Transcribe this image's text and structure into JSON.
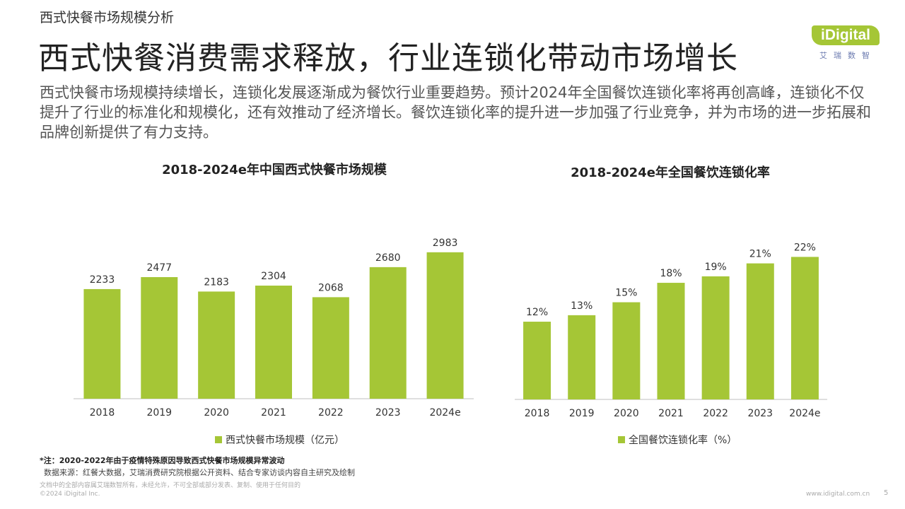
{
  "header": {
    "section_label": "西式快餐市场规模分析",
    "headline": "西式快餐消费需求释放，行业连锁化带动市场增长",
    "intro": "西式快餐市场规模持续增长，连锁化发展逐渐成为餐饮行业重要趋势。预计2024年全国餐饮连锁化率将再创高峰，连锁化不仅提升了行业的标准化和规模化，还有效推动了经济增长。餐饮连锁化率的提升进一步加强了行业竞争，并为市场的进一步拓展和品牌创新提供了有力支持。"
  },
  "logo": {
    "badge_text": "iDigital",
    "sub_text": "艾瑞数智"
  },
  "colors": {
    "bar": "#a5c636",
    "axis": "#bfbfbf",
    "logo_sub": "#6c7bb0"
  },
  "chart_data": [
    {
      "type": "bar",
      "title": "2018-2024e年中国西式快餐市场规模",
      "categories": [
        "2018",
        "2019",
        "2020",
        "2021",
        "2022",
        "2023",
        "2024e"
      ],
      "series": [
        {
          "name": "西式快餐市场规模（亿元）",
          "values": [
            2233,
            2477,
            2183,
            2304,
            2068,
            2680,
            2983
          ]
        }
      ],
      "data_labels": [
        "2233",
        "2477",
        "2183",
        "2304",
        "2068",
        "2680",
        "2983"
      ],
      "ylim": [
        0,
        3600
      ],
      "grid": false,
      "legend_position": "bottom"
    },
    {
      "type": "bar",
      "title": "2018-2024e年全国餐饮连锁化率",
      "categories": [
        "2018",
        "2019",
        "2020",
        "2021",
        "2022",
        "2023",
        "2024e"
      ],
      "series": [
        {
          "name": "全国餐饮连锁化率（%）",
          "values": [
            12,
            13,
            15,
            18,
            19,
            21,
            22
          ]
        }
      ],
      "data_labels": [
        "12%",
        "13%",
        "15%",
        "18%",
        "19%",
        "21%",
        "22%"
      ],
      "ylim": [
        0,
        27.5
      ],
      "grid": false,
      "legend_position": "bottom"
    }
  ],
  "footer": {
    "note": "*注：2020-2022年由于疫情特殊原因导致西式快餐市场规模异常波动",
    "source": "数据来源：红餐大数据，艾瑞消费研究院根据公开资料、结合专家访谈内容自主研究及绘制",
    "disclaimer": "文档中的全部内容属艾瑞数智所有，未经允许，不可全部或部分发表、复制、使用于任何目的",
    "copyright": "©2024 iDigital Inc.",
    "site": "www.idigital.com.cn",
    "page_number": "5"
  }
}
